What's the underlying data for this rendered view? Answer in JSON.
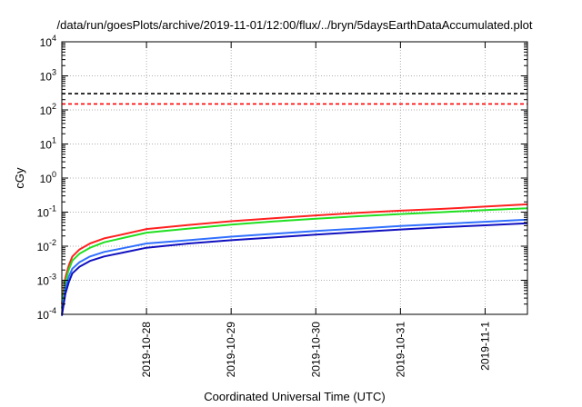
{
  "chart_data": {
    "type": "line",
    "title": "/data/run/goesPlots/archive/2019-11-01/12:00/flux/../bryn/5daysEarthDataAccumulated.plot",
    "xlabel": "Coordinated Universal Time (UTC)",
    "ylabel": "cGy",
    "y_scale": "log",
    "ylim": [
      0.0001,
      10000
    ],
    "xlim": [
      "2019-10-27 00:00",
      "2019-11-01 12:00"
    ],
    "y_ticks": [
      {
        "value": 0.0001,
        "base": "10",
        "exp": "-4"
      },
      {
        "value": 0.001,
        "base": "10",
        "exp": "-3"
      },
      {
        "value": 0.01,
        "base": "10",
        "exp": "-2"
      },
      {
        "value": 0.1,
        "base": "10",
        "exp": "-1"
      },
      {
        "value": 1,
        "base": "10",
        "exp": "0"
      },
      {
        "value": 10,
        "base": "10",
        "exp": "1"
      },
      {
        "value": 100,
        "base": "10",
        "exp": "2"
      },
      {
        "value": 1000,
        "base": "10",
        "exp": "3"
      },
      {
        "value": 10000,
        "base": "10",
        "exp": "4"
      }
    ],
    "x_ticks": [
      {
        "value": "2019-10-28",
        "label": "2019-10-28"
      },
      {
        "value": "2019-10-29",
        "label": "2019-10-29"
      },
      {
        "value": "2019-10-30",
        "label": "2019-10-30"
      },
      {
        "value": "2019-10-31",
        "label": "2019-10-31"
      },
      {
        "value": "2019-11-01",
        "label": "2019-11-1"
      }
    ],
    "grid": true,
    "reference_lines": [
      {
        "y": 300,
        "color": "#000000",
        "style": "dashed"
      },
      {
        "y": 150,
        "color": "#ff0000",
        "style": "dashed"
      }
    ],
    "series": [
      {
        "color": "#ff2020",
        "x": [
          "2019-10-27 00:00",
          "2019-10-27 01:00",
          "2019-10-27 02:00",
          "2019-10-27 03:00",
          "2019-10-27 05:00",
          "2019-10-27 08:00",
          "2019-10-27 12:00",
          "2019-10-27 18:00",
          "2019-10-28 00:00",
          "2019-10-28 12:00",
          "2019-10-29 00:00",
          "2019-10-29 12:00",
          "2019-10-30 00:00",
          "2019-10-30 12:00",
          "2019-10-31 00:00",
          "2019-10-31 12:00",
          "2019-11-01 00:00",
          "2019-11-01 12:00"
        ],
        "y": [
          0.0002,
          0.0012,
          0.0028,
          0.005,
          0.008,
          0.012,
          0.017,
          0.023,
          0.032,
          0.042,
          0.054,
          0.066,
          0.08,
          0.095,
          0.11,
          0.125,
          0.145,
          0.17
        ]
      },
      {
        "color": "#20e020",
        "x": [
          "2019-10-27 00:00",
          "2019-10-27 01:00",
          "2019-10-27 02:00",
          "2019-10-27 03:00",
          "2019-10-27 05:00",
          "2019-10-27 08:00",
          "2019-10-27 12:00",
          "2019-10-27 18:00",
          "2019-10-28 00:00",
          "2019-10-28 12:00",
          "2019-10-29 00:00",
          "2019-10-29 12:00",
          "2019-10-30 00:00",
          "2019-10-30 12:00",
          "2019-10-31 00:00",
          "2019-10-31 12:00",
          "2019-11-01 00:00",
          "2019-11-01 12:00"
        ],
        "y": [
          0.00015,
          0.0009,
          0.0021,
          0.0038,
          0.006,
          0.009,
          0.013,
          0.018,
          0.025,
          0.033,
          0.043,
          0.053,
          0.064,
          0.076,
          0.088,
          0.1,
          0.115,
          0.13
        ]
      },
      {
        "color": "#3070ff",
        "x": [
          "2019-10-27 00:00",
          "2019-10-27 01:00",
          "2019-10-27 02:00",
          "2019-10-27 03:00",
          "2019-10-27 05:00",
          "2019-10-27 08:00",
          "2019-10-27 12:00",
          "2019-10-27 18:00",
          "2019-10-28 00:00",
          "2019-10-28 12:00",
          "2019-10-29 00:00",
          "2019-10-29 12:00",
          "2019-10-30 00:00",
          "2019-10-30 12:00",
          "2019-10-31 00:00",
          "2019-10-31 12:00",
          "2019-11-01 00:00",
          "2019-11-01 12:00"
        ],
        "y": [
          0.0001,
          0.0006,
          0.0013,
          0.0022,
          0.0034,
          0.005,
          0.0068,
          0.009,
          0.012,
          0.015,
          0.019,
          0.023,
          0.028,
          0.033,
          0.039,
          0.045,
          0.052,
          0.06
        ]
      },
      {
        "color": "#1010c0",
        "x": [
          "2019-10-27 00:00",
          "2019-10-27 01:00",
          "2019-10-27 02:00",
          "2019-10-27 03:00",
          "2019-10-27 05:00",
          "2019-10-27 08:00",
          "2019-10-27 12:00",
          "2019-10-27 18:00",
          "2019-10-28 00:00",
          "2019-10-28 12:00",
          "2019-10-29 00:00",
          "2019-10-29 12:00",
          "2019-10-30 00:00",
          "2019-10-30 12:00",
          "2019-10-31 00:00",
          "2019-10-31 12:00",
          "2019-11-01 00:00",
          "2019-11-01 12:00"
        ],
        "y": [
          9e-05,
          0.0004,
          0.0009,
          0.0016,
          0.0025,
          0.0037,
          0.005,
          0.0067,
          0.009,
          0.012,
          0.015,
          0.018,
          0.022,
          0.026,
          0.031,
          0.036,
          0.041,
          0.047
        ]
      }
    ]
  }
}
